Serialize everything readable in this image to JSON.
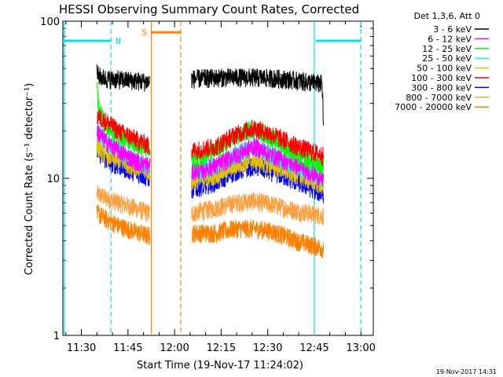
{
  "chart_data": {
    "type": "line",
    "title": "HESSI Observing Summary Count Rates, Corrected",
    "ylabel": "Corrected Count Rate (s⁻¹ detector⁻¹)",
    "xlabel": "Start Time (19-Nov-17 11:24:02)",
    "yscale": "log",
    "ylim": [
      1,
      100
    ],
    "xlim": [
      "11:24:02",
      "13:04:00"
    ],
    "y_ticks": [
      "1",
      "10",
      "100"
    ],
    "x_ticks": [
      "11:30",
      "11:45",
      "12:00",
      "12:15",
      "12:30",
      "12:45",
      "13:00"
    ],
    "legend_placement": "right",
    "legend_header": "Det 1,3,6, Att 0",
    "timestamp": "19-Nov-2017 14:31",
    "annotations": [
      {
        "label": "N",
        "color": "#00e0f0",
        "level": 75,
        "segments": [
          [
            "11:24:02",
            "11:39:30"
          ],
          [
            "12:45:30",
            "13:00:00"
          ]
        ],
        "boundaries": [
          "11:24:30",
          "11:39:30",
          "12:45:00",
          "13:00:00"
        ]
      },
      {
        "label": "S",
        "color": "#ff8000",
        "level": 85,
        "segments": [
          [
            "11:52:30",
            "12:02:00"
          ]
        ],
        "boundaries": [
          "11:52:30",
          "12:02:00"
        ]
      }
    ],
    "data_intervals": [
      [
        "11:35:00",
        "11:52:00"
      ],
      [
        "12:05:30",
        "12:48:00"
      ]
    ],
    "series": [
      {
        "name": "3 - 6 keV",
        "color": "#000000",
        "profile": [
          [
            0,
            48
          ],
          [
            0.5,
            45
          ],
          [
            3,
            43
          ],
          [
            12,
            42
          ],
          [
            17,
            41
          ]
        ],
        "profile2": [
          [
            0,
            43
          ],
          [
            10,
            44
          ],
          [
            20,
            44
          ],
          [
            30,
            43
          ],
          [
            38,
            41
          ],
          [
            42,
            40
          ],
          [
            42.4,
            22
          ]
        ]
      },
      {
        "name": "6 - 12 keV",
        "color": "#ff00ff",
        "profile": [
          [
            0,
            20
          ],
          [
            3,
            17
          ],
          [
            7,
            15
          ],
          [
            12,
            13
          ],
          [
            17,
            12
          ]
        ],
        "profile2": [
          [
            0,
            11
          ],
          [
            8,
            12
          ],
          [
            14,
            14
          ],
          [
            20,
            16
          ],
          [
            26,
            14
          ],
          [
            34,
            12
          ],
          [
            42,
            10
          ]
        ]
      },
      {
        "name": "12 - 25 keV",
        "color": "#00ff00",
        "profile": [
          [
            0,
            40
          ],
          [
            0.5,
            28
          ],
          [
            3,
            21
          ],
          [
            7,
            19
          ],
          [
            12,
            17
          ],
          [
            17,
            15
          ]
        ],
        "profile2": [
          [
            0,
            13
          ],
          [
            8,
            15
          ],
          [
            14,
            18
          ],
          [
            20,
            21
          ],
          [
            26,
            18
          ],
          [
            34,
            14
          ],
          [
            42,
            12
          ]
        ]
      },
      {
        "name": "25 - 50 keV",
        "color": "#00ffff",
        "profile": [
          [
            0,
            20
          ],
          [
            3,
            17
          ],
          [
            7,
            15
          ],
          [
            12,
            13
          ],
          [
            17,
            12
          ]
        ],
        "profile2": [
          [
            0,
            11
          ],
          [
            8,
            12
          ],
          [
            14,
            14
          ],
          [
            20,
            16
          ],
          [
            26,
            14
          ],
          [
            34,
            12
          ],
          [
            42,
            10
          ]
        ]
      },
      {
        "name": "50 - 100 keV",
        "color": "#e0c000",
        "profile": [
          [
            0,
            16
          ],
          [
            3,
            14
          ],
          [
            7,
            13
          ],
          [
            12,
            12
          ],
          [
            17,
            11
          ]
        ],
        "profile2": [
          [
            0,
            9.5
          ],
          [
            8,
            10.5
          ],
          [
            14,
            12
          ],
          [
            20,
            13
          ],
          [
            26,
            12
          ],
          [
            34,
            10.5
          ],
          [
            42,
            9
          ]
        ]
      },
      {
        "name": "100 - 300 keV",
        "color": "#ff0000",
        "profile": [
          [
            0,
            25
          ],
          [
            3,
            23
          ],
          [
            7,
            20
          ],
          [
            12,
            18
          ],
          [
            17,
            16
          ]
        ],
        "profile2": [
          [
            0,
            15
          ],
          [
            8,
            16
          ],
          [
            14,
            19
          ],
          [
            20,
            21
          ],
          [
            26,
            19
          ],
          [
            34,
            16
          ],
          [
            42,
            14
          ]
        ]
      },
      {
        "name": "300 - 800 keV",
        "color": "#0000ff",
        "profile": [
          [
            0,
            15
          ],
          [
            3,
            13
          ],
          [
            7,
            12
          ],
          [
            12,
            11
          ],
          [
            17,
            10
          ]
        ],
        "profile2": [
          [
            0,
            8.5
          ],
          [
            8,
            9.5
          ],
          [
            14,
            11
          ],
          [
            20,
            12
          ],
          [
            26,
            11
          ],
          [
            34,
            9.5
          ],
          [
            42,
            8
          ]
        ]
      },
      {
        "name": "800 - 7000 keV",
        "color": "#ffa040",
        "profile": [
          [
            0,
            8
          ],
          [
            3,
            7.5
          ],
          [
            7,
            7
          ],
          [
            12,
            6.5
          ],
          [
            17,
            6
          ]
        ],
        "profile2": [
          [
            0,
            6
          ],
          [
            8,
            6.5
          ],
          [
            14,
            7
          ],
          [
            20,
            7.2
          ],
          [
            26,
            6.8
          ],
          [
            34,
            6.2
          ],
          [
            42,
            5.8
          ]
        ]
      },
      {
        "name": "7000 - 20000 keV",
        "color": "#ff8000",
        "profile": [
          [
            0,
            6
          ],
          [
            3,
            5.5
          ],
          [
            7,
            5
          ],
          [
            12,
            4.6
          ],
          [
            17,
            4.3
          ]
        ],
        "profile2": [
          [
            0,
            4.5
          ],
          [
            8,
            4.5
          ],
          [
            14,
            4.8
          ],
          [
            20,
            4.8
          ],
          [
            26,
            4.6
          ],
          [
            34,
            4.0
          ],
          [
            42,
            3.6
          ]
        ]
      }
    ]
  }
}
